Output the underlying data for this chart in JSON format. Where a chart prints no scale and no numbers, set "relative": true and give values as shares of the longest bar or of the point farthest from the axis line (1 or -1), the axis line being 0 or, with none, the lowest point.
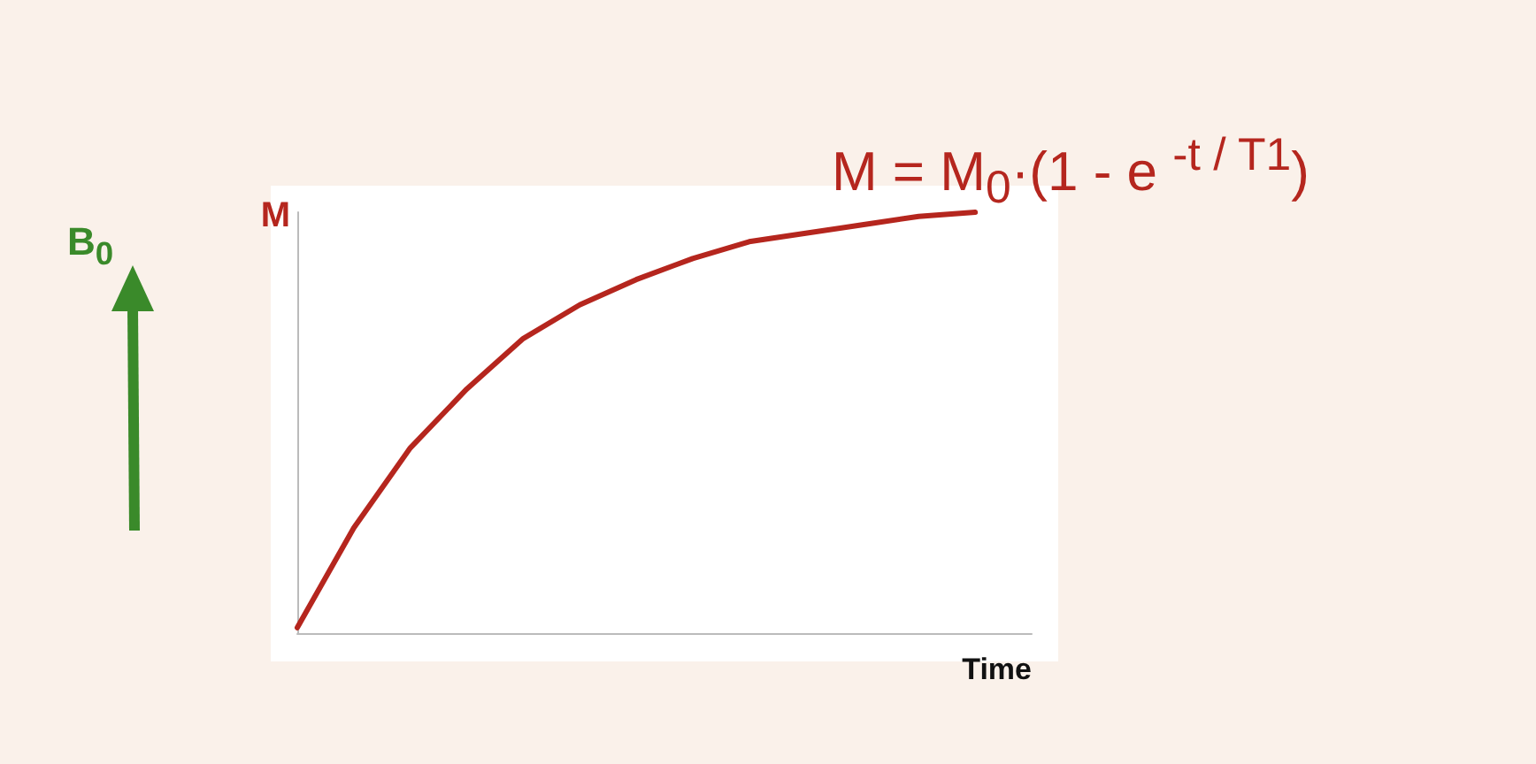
{
  "chart_data": {
    "type": "line",
    "relative": true,
    "xlabel": "Time",
    "ylabel": "M",
    "color": "#b5261e",
    "categories": [
      null,
      null,
      null,
      null,
      null,
      null,
      null,
      null,
      null,
      null,
      null,
      null,
      null,
      null
    ],
    "values": [
      0.013,
      0.25,
      0.44,
      0.58,
      0.7,
      0.78,
      0.84,
      0.89,
      0.93,
      0.95,
      0.97,
      0.99,
      1,
      null
    ],
    "annotations": [
      "M = M$_{0}$·(1 - e $^{-t / T1}$)",
      "B$_{0}$"
    ],
    "grid": false,
    "marker": "none",
    "line_style": "solid"
  }
}
